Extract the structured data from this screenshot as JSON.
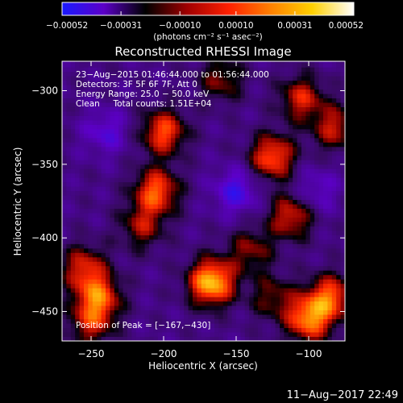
{
  "colorbar": {
    "min": -0.00052,
    "max": 0.00052,
    "ticks": [
      {
        "value": -0.00052,
        "label": "−0.00052"
      },
      {
        "value": -0.00031,
        "label": "−0.00031"
      },
      {
        "value": -0.0001,
        "label": "−0.00010"
      },
      {
        "value": 0.0001,
        "label": "0.00010"
      },
      {
        "value": 0.00031,
        "label": "0.00031"
      },
      {
        "value": 0.00052,
        "label": "0.00052"
      }
    ],
    "unit_label": "(photons cm⁻² s⁻¹ asec⁻²)",
    "gradient_colors": [
      "#1a1aff",
      "#5c00c8",
      "#000000",
      "#a00000",
      "#ff2000",
      "#ff8000",
      "#ffd000",
      "#ffffff"
    ]
  },
  "chart_data": {
    "type": "heatmap",
    "title": "Reconstructed RHESSI Image",
    "xlabel": "Heliocentric X (arcsec)",
    "ylabel": "Heliocentric Y (arcsec)",
    "xlim": [
      -270,
      -75
    ],
    "ylim": [
      -470,
      -280
    ],
    "x_ticks": [
      {
        "value": -250,
        "label": "−250"
      },
      {
        "value": -200,
        "label": "−200"
      },
      {
        "value": -150,
        "label": "−150"
      },
      {
        "value": -100,
        "label": "−100"
      }
    ],
    "y_ticks": [
      {
        "value": -300,
        "label": "−300"
      },
      {
        "value": -350,
        "label": "−350"
      },
      {
        "value": -400,
        "label": "−400"
      },
      {
        "value": -450,
        "label": "−450"
      }
    ],
    "annotations": [
      "23−Aug−2015 01:46:44.000 to 01:56:44.000",
      "Detectors: 3F 5F 6F 7F, Att 0",
      "Energy Range: 25.0 − 50.0 keV",
      "Clean     Total counts: 1.51E+04"
    ],
    "peak_label": "Position of Peak = [−167,−430]",
    "peak": [
      -167,
      -430
    ],
    "background_level": -0.00016,
    "sources": [
      {
        "x": -200,
        "y": -328,
        "intensity": 0.00034
      },
      {
        "x": -205,
        "y": -368,
        "intensity": 0.00036
      },
      {
        "x": -215,
        "y": -392,
        "intensity": 0.0002
      },
      {
        "x": -255,
        "y": -420,
        "intensity": 0.00026
      },
      {
        "x": -245,
        "y": -440,
        "intensity": 0.00034
      },
      {
        "x": -250,
        "y": -458,
        "intensity": 0.00022
      },
      {
        "x": -167,
        "y": -430,
        "intensity": 0.00052
      },
      {
        "x": -140,
        "y": -408,
        "intensity": 0.00018
      },
      {
        "x": -125,
        "y": -345,
        "intensity": 0.00036
      },
      {
        "x": -112,
        "y": -385,
        "intensity": 0.00028
      },
      {
        "x": -100,
        "y": -455,
        "intensity": 0.0004
      },
      {
        "x": -85,
        "y": -440,
        "intensity": 0.00034
      },
      {
        "x": -105,
        "y": -305,
        "intensity": 0.00026
      },
      {
        "x": -82,
        "y": -325,
        "intensity": 0.00024
      },
      {
        "x": -160,
        "y": -292,
        "intensity": 0.00018
      },
      {
        "x": -125,
        "y": -440,
        "intensity": 0.00016
      }
    ],
    "negative_sources": [
      {
        "x": -150,
        "y": -368,
        "intensity": -0.0003
      },
      {
        "x": -240,
        "y": -328,
        "intensity": -0.00024
      },
      {
        "x": -95,
        "y": -368,
        "intensity": -0.00022
      }
    ]
  },
  "timestamp": "11−Aug−2017 22:49"
}
